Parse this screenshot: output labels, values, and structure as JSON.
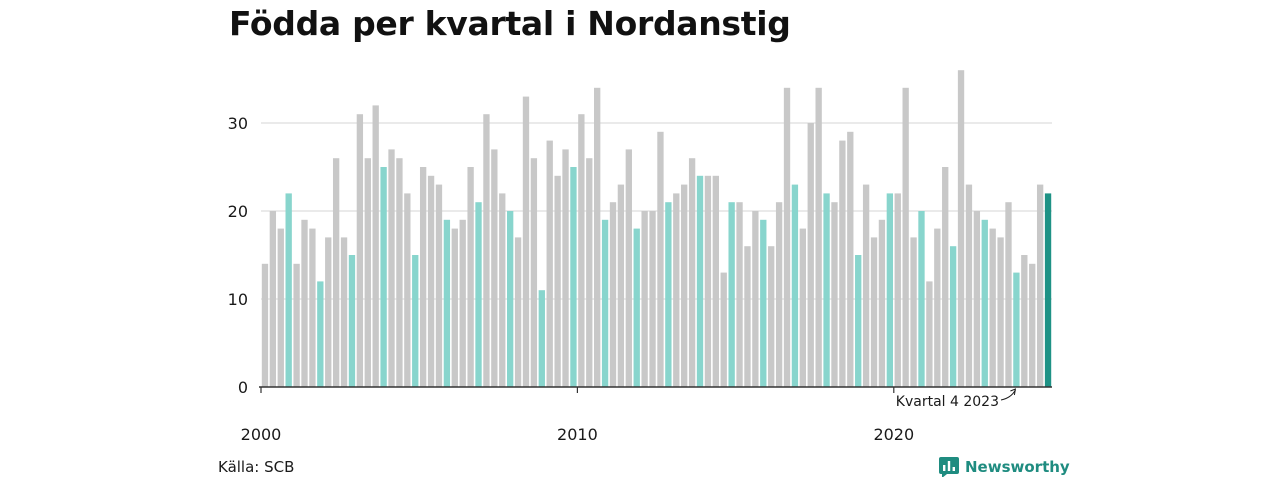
{
  "title": "Födda per kvartal i Nordanstig",
  "source": "Källa: SCB",
  "brand": {
    "name": "Newsworthy",
    "icon": "newsworthy-logo-icon",
    "color": "#1f8c80"
  },
  "colors": {
    "default_bar": "#c8c8c8",
    "q4_bar": "#88d5cd",
    "latest_bar": "#1e9285",
    "grid": "#dddddd",
    "axis": "#333333"
  },
  "chart_data": {
    "type": "bar",
    "title": "Födda per kvartal i Nordanstig",
    "xlabel": "",
    "ylabel": "",
    "ylim": [
      0,
      36
    ],
    "yticks": [
      0,
      10,
      20,
      30
    ],
    "x_tick_labels": [
      "2000",
      "2010",
      "2020"
    ],
    "grid": true,
    "annotation": {
      "text": "Kvartal 4 2023",
      "target_index": 95
    },
    "highlight_rule": "quarter 4 bars in turquoise, latest bar in dark teal",
    "start_year": 2000,
    "values": [
      14,
      20,
      18,
      22,
      14,
      19,
      18,
      12,
      17,
      26,
      17,
      15,
      31,
      26,
      32,
      25,
      27,
      26,
      22,
      15,
      25,
      24,
      23,
      19,
      18,
      19,
      25,
      21,
      31,
      27,
      22,
      20,
      17,
      33,
      26,
      11,
      28,
      24,
      27,
      25,
      31,
      26,
      34,
      19,
      21,
      23,
      27,
      18,
      20,
      20,
      29,
      21,
      22,
      23,
      26,
      24,
      24,
      24,
      13,
      21,
      21,
      16,
      20,
      19,
      16,
      21,
      34,
      23,
      18,
      30,
      34,
      22,
      21,
      28,
      29,
      15,
      23,
      17,
      19,
      22,
      22,
      34,
      17,
      20,
      12,
      18,
      25,
      16,
      36,
      23,
      20,
      19,
      18,
      17,
      21,
      13,
      15,
      14,
      23,
      22
    ]
  }
}
